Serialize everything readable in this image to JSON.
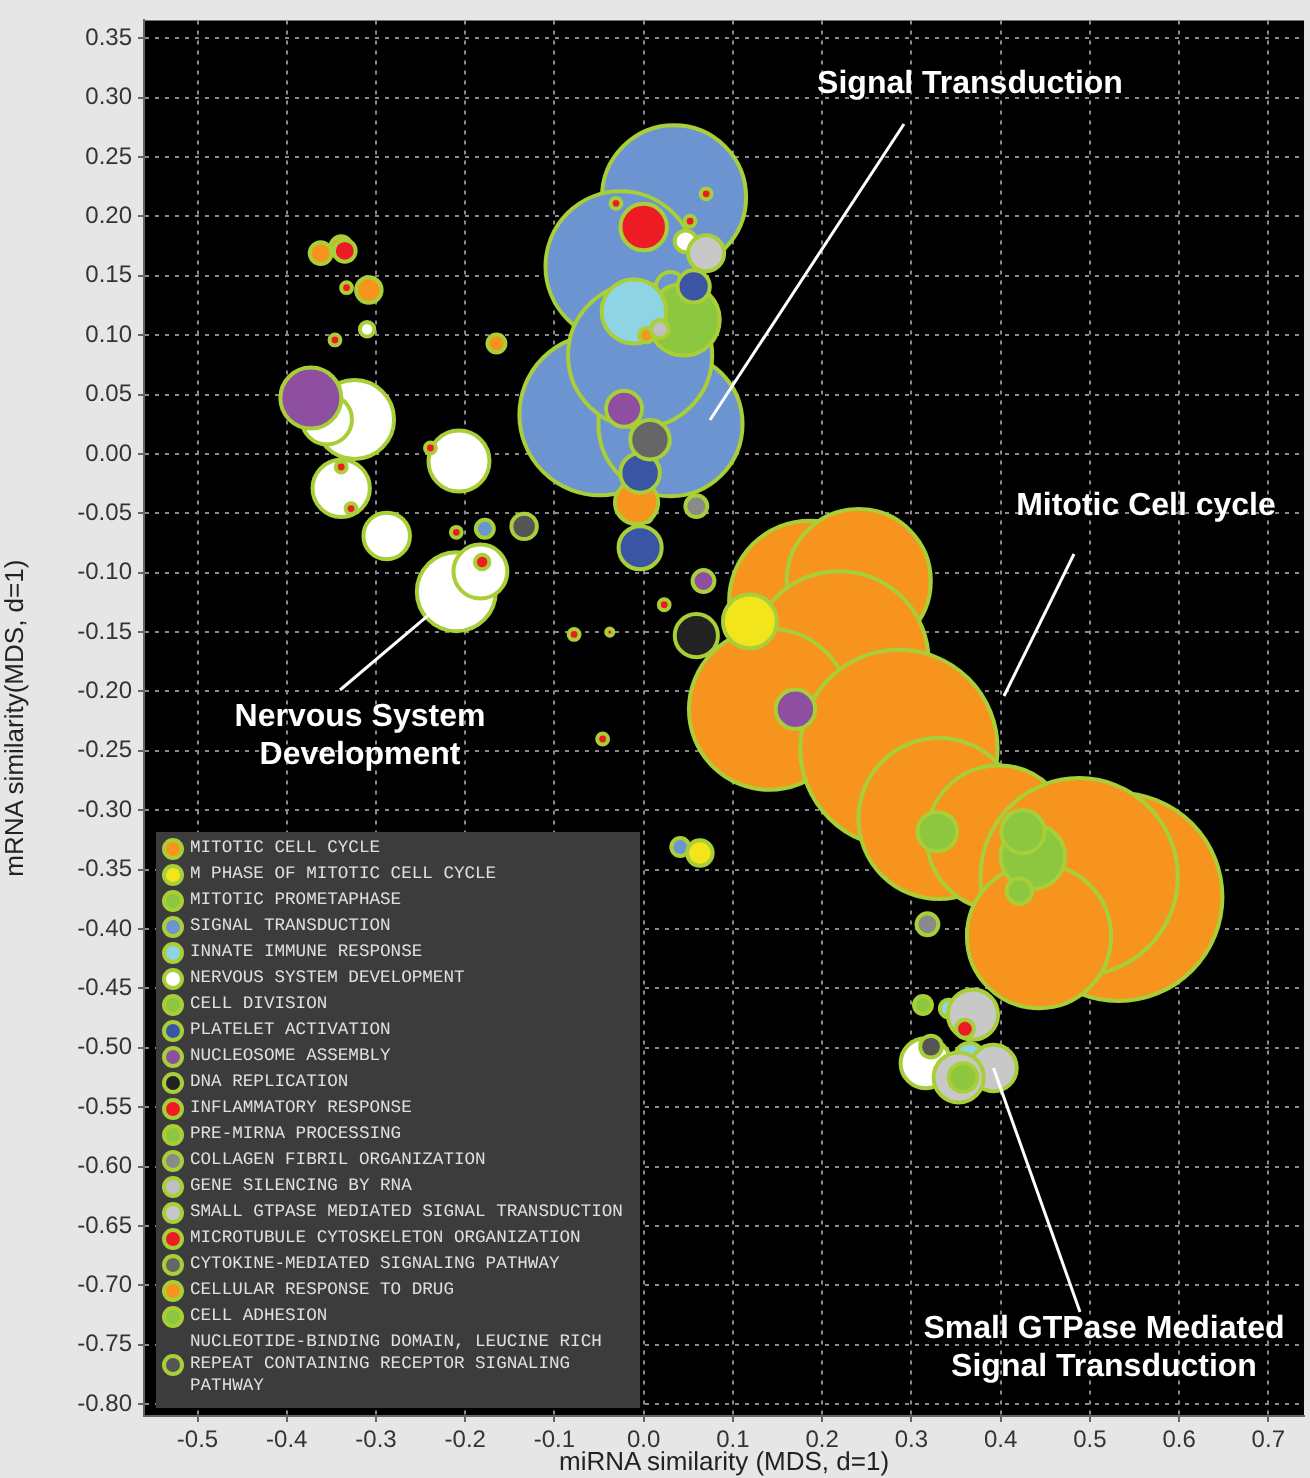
{
  "chart_data": {
    "type": "bubble",
    "xlabel": "miRNA similarity (MDS, d=1)",
    "ylabel": "mRNA similarity(MDS, d=1)",
    "xlim": [
      -0.56,
      0.74
    ],
    "ylim": [
      -0.81,
      0.365
    ],
    "xticks": [
      {
        "value": -0.5,
        "label": "-0.5"
      },
      {
        "value": -0.4,
        "label": "-0.4"
      },
      {
        "value": -0.3,
        "label": "-0.3"
      },
      {
        "value": -0.2,
        "label": "-0.2"
      },
      {
        "value": -0.1,
        "label": "-0.1"
      },
      {
        "value": 0,
        "label": "0.0"
      },
      {
        "value": 0.1,
        "label": "0.1"
      },
      {
        "value": 0.2,
        "label": "0.2"
      },
      {
        "value": 0.3,
        "label": "0.3"
      },
      {
        "value": 0.4,
        "label": "0.4"
      },
      {
        "value": 0.5,
        "label": "0.5"
      },
      {
        "value": 0.6,
        "label": "0.6"
      },
      {
        "value": 0.7,
        "label": "0.7"
      }
    ],
    "yticks": [
      {
        "value": 0.35,
        "label": "0.35"
      },
      {
        "value": 0.3,
        "label": "0.30"
      },
      {
        "value": 0.25,
        "label": "0.25"
      },
      {
        "value": 0.2,
        "label": "0.20"
      },
      {
        "value": 0.15,
        "label": "0.15"
      },
      {
        "value": 0.1,
        "label": "0.10"
      },
      {
        "value": 0.05,
        "label": "0.05"
      },
      {
        "value": 0,
        "label": "0.00"
      },
      {
        "value": -0.05,
        "label": "-0.05"
      },
      {
        "value": -0.1,
        "label": "-0.10"
      },
      {
        "value": -0.15,
        "label": "-0.15"
      },
      {
        "value": -0.2,
        "label": "-0.20"
      },
      {
        "value": -0.25,
        "label": "-0.25"
      },
      {
        "value": -0.3,
        "label": "-0.30"
      },
      {
        "value": -0.35,
        "label": "-0.35"
      },
      {
        "value": -0.4,
        "label": "-0.40"
      },
      {
        "value": -0.45,
        "label": "-0.45"
      },
      {
        "value": -0.5,
        "label": "-0.50"
      },
      {
        "value": -0.55,
        "label": "-0.55"
      },
      {
        "value": -0.6,
        "label": "-0.60"
      },
      {
        "value": -0.65,
        "label": "-0.65"
      },
      {
        "value": -0.7,
        "label": "-0.70"
      },
      {
        "value": -0.75,
        "label": "-0.75"
      },
      {
        "value": -0.8,
        "label": "-0.80"
      }
    ],
    "grid": true,
    "legend": "bottom left",
    "annotations": [
      "Signal Transduction",
      "Mitotic Cell cycle",
      {
        "text": "Nervous System Development",
        "x": -0.21,
        "y": -0.116
      },
      {
        "text": "Small GTPase Mediated Signal Transduction",
        "x": 0.392,
        "y": -0.517
      }
    ],
    "series": [
      {
        "name": "MITOTIC CELL CYCLE",
        "color": "#f7941d",
        "x": [
          0.532,
          0.186,
          0.241,
          0.219,
          0.141,
          0.286,
          0.331,
          0.398,
          0.488,
          0.443
        ],
        "values": [
          -0.373,
          -0.124,
          -0.107,
          -0.174,
          -0.215,
          -0.248,
          -0.307,
          -0.323,
          -0.356,
          -0.406
        ],
        "sizes": [
          1,
          0.6,
          0.48,
          0.74,
          0.6,
          0.9,
          0.6,
          0.48,
          0.9,
          0.48
        ]
      },
      {
        "name": "M PHASE OF MITOTIC CELL CYCLE",
        "color": "#f2e51c",
        "x": [
          0.119,
          0.063
        ],
        "values": [
          -0.141,
          -0.336
        ],
        "sizes": [
          0.067,
          0.015
        ]
      },
      {
        "name": "MITOTIC PROMETAPHASE",
        "color": "#8dc63f",
        "x": [
          0.329,
          0.425,
          0.421,
          0.358
        ],
        "values": [
          -0.318,
          -0.318,
          -0.368,
          -0.525
        ],
        "sizes": [
          0.036,
          0.043,
          0.015,
          0.019
        ]
      },
      {
        "name": "SIGNAL TRANSDUCTION",
        "color": "#6b94d0",
        "x": [
          0.034,
          -0.026,
          -0.049,
          0.03,
          -0.004,
          0.03,
          -0.178,
          0.041
        ],
        "values": [
          0.216,
          0.158,
          0.033,
          0.025,
          0.083,
          0.141,
          -0.063,
          -0.331
        ],
        "sizes": [
          0.48,
          0.52,
          0.6,
          0.48,
          0.48,
          0.019,
          0.0074,
          0.0074
        ]
      },
      {
        "name": "INNATE IMMUNE RESPONSE",
        "color": "#8fd4e4",
        "x": [
          -0.011,
          0.365,
          0.342
        ],
        "values": [
          0.12,
          -0.508,
          -0.467
        ],
        "sizes": [
          0.096,
          0.019,
          0.0074
        ]
      },
      {
        "name": "NERVOUS SYSTEM DEVELOPMENT",
        "color": "#ffffff",
        "x": [
          -0.324,
          -0.355,
          -0.339,
          -0.288,
          -0.207,
          -0.21,
          -0.183,
          0.047,
          -0.31,
          0.316
        ],
        "values": [
          0.029,
          0.029,
          -0.029,
          -0.069,
          -0.006,
          -0.116,
          -0.099,
          0.179,
          0.105,
          -0.513
        ],
        "sizes": [
          0.144,
          0.058,
          0.076,
          0.05,
          0.086,
          0.144,
          0.067,
          0.011,
          0.0048,
          0.058
        ]
      },
      {
        "name": "CELL DIVISION",
        "color": "#8dc63f",
        "x": [
          0.045
        ],
        "values": [
          0.113
        ],
        "sizes": [
          0.119
        ]
      },
      {
        "name": "PLATELET ACTIVATION",
        "color": "#3a55a4",
        "x": [
          0.056,
          -0.004,
          -0.004
        ],
        "values": [
          0.141,
          -0.016,
          -0.079
        ],
        "sizes": [
          0.024,
          0.036,
          0.043
        ]
      },
      {
        "name": "NUCLEOSOME ASSEMBLY",
        "color": "#8e4fa0",
        "x": [
          -0.373,
          -0.022,
          0.17,
          0.067
        ],
        "values": [
          0.047,
          0.038,
          -0.215,
          -0.107
        ],
        "sizes": [
          0.086,
          0.03,
          0.036,
          0.011
        ]
      },
      {
        "name": "DNA REPLICATION",
        "color": "#222222",
        "x": [
          0.059
        ],
        "values": [
          -0.153
        ],
        "sizes": [
          0.043
        ]
      },
      {
        "name": "INFLAMMATORY RESPONSE",
        "color": "#ed1c24",
        "x": [
          0,
          -0.333,
          -0.346,
          -0.339,
          -0.328,
          -0.239,
          -0.21,
          -0.181,
          -0.078,
          -0.038,
          -0.031,
          0.07,
          0.052,
          0.023,
          -0.046,
          0.003,
          0.023
        ],
        "values": [
          0.191,
          0.14,
          0.096,
          -0.011,
          -0.046,
          0.005,
          -0.066,
          -0.091,
          -0.152,
          -0.15,
          0.211,
          0.219,
          0.196,
          -0.127,
          -0.24,
          -0.053,
          0.009
        ],
        "sizes": [
          0.05,
          0.0027,
          0.0027,
          0.0027,
          0.0027,
          0.0027,
          0.0027,
          0.0048,
          0.0027,
          0.0012,
          0.0027,
          0.0027,
          0.0027,
          0.0027,
          0.0027,
          0.0027,
          0.0027
        ]
      },
      {
        "name": "PRE-MIRNA PROCESSING",
        "color": "#8dc63f",
        "x": [
          0.313
        ],
        "values": [
          -0.464
        ],
        "sizes": [
          0.0074
        ]
      },
      {
        "name": "COLLAGEN FIBRIL ORGANIZATION",
        "color": "#8a8a8a",
        "x": [
          0.059,
          0.318
        ],
        "values": [
          -0.044,
          -0.396
        ],
        "sizes": [
          0.011,
          0.011
        ]
      },
      {
        "name": "GENE SILENCING BY RNA",
        "color": "#c0c0c0",
        "x": [
          0.018
        ],
        "values": [
          0.105
        ],
        "sizes": [
          0.0074
        ]
      },
      {
        "name": "SMALL GTPASE MEDIATED SIGNAL TRANSDUCTION",
        "color": "#c8c8c8",
        "x": [
          0.07,
          0.369,
          0.392,
          0.353
        ],
        "values": [
          0.169,
          -0.472,
          -0.517,
          -0.525
        ],
        "sizes": [
          0.03,
          0.058,
          0.05,
          0.058
        ]
      },
      {
        "name": "MICROTUBULE CYTOSKELETON ORGANIZATION",
        "color": "#ed1c24",
        "x": [
          -0.335,
          0.36
        ],
        "values": [
          0.171,
          -0.484
        ],
        "sizes": [
          0.011,
          0.0074
        ]
      },
      {
        "name": "CYTOKINE-MEDIATED SIGNALING PATHWAY",
        "color": "#666666",
        "x": [
          0.007
        ],
        "values": [
          0.012
        ],
        "sizes": [
          0.036
        ]
      },
      {
        "name": "CELLULAR RESPONSE TO DRUG",
        "color": "#f7941d",
        "x": [
          -0.008,
          -0.362,
          -0.339,
          -0.308,
          -0.165,
          0.003
        ],
        "values": [
          -0.041,
          0.169,
          0.174,
          0.138,
          0.093,
          0.1
        ],
        "sizes": [
          0.043,
          0.011,
          0.011,
          0.015,
          0.0074,
          0.0048
        ]
      },
      {
        "name": "CELL ADHESION",
        "color": "#8dc63f",
        "x": [
          0.436
        ],
        "values": [
          -0.339
        ],
        "sizes": [
          0.096
        ]
      },
      {
        "name": "NUCLEOTIDE-BINDING DOMAIN, LEUCINE RICH REPEAT CONTAINING RECEPTOR SIGNALING PATHWAY",
        "color": "#555555",
        "x": [
          -0.134,
          0.322
        ],
        "values": [
          -0.061,
          -0.499
        ],
        "sizes": [
          0.015,
          0.011
        ]
      }
    ]
  }
}
